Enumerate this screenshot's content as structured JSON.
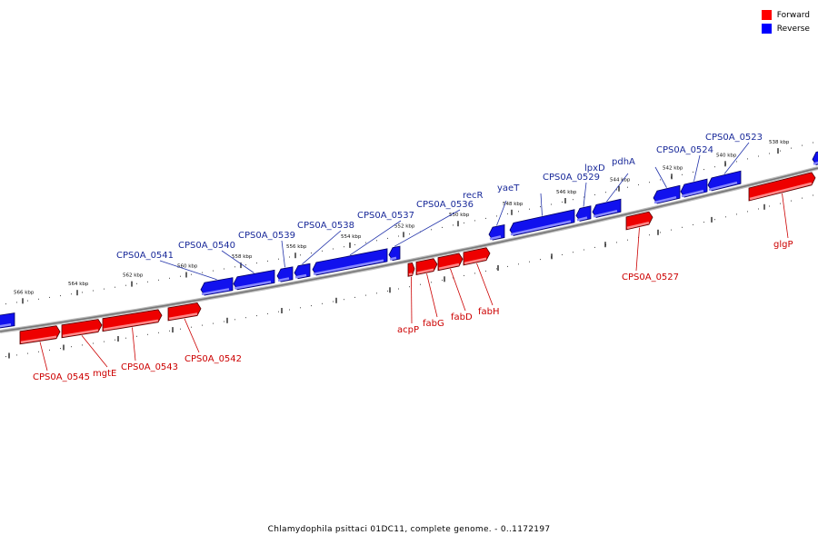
{
  "title": "Chlamydophila psittaci 01DC11, complete genome. - 0..1172197",
  "legend": {
    "forward": {
      "label": "Forward",
      "color": "#ff0000"
    },
    "reverse": {
      "label": "Reverse",
      "color": "#0000ff"
    }
  },
  "tick_labels": [
    "566 kbp",
    "564 kbp",
    "562 kbp",
    "560 kbp",
    "558 kbp",
    "556 kbp",
    "554 kbp",
    "552 kbp",
    "550 kbp",
    "548 kbp",
    "546 kbp",
    "544 kbp",
    "542 kbp",
    "540 kbp",
    "538 kbp"
  ],
  "genes_reverse": [
    {
      "label": "CPS0A_0541"
    },
    {
      "label": "CPS0A_0540"
    },
    {
      "label": "CPS0A_0539"
    },
    {
      "label": "CPS0A_0538"
    },
    {
      "label": "CPS0A_0537"
    },
    {
      "label": "CPS0A_0536"
    },
    {
      "label": "recR"
    },
    {
      "label": "yaeT"
    },
    {
      "label": "CPS0A_0529"
    },
    {
      "label": "lpxD"
    },
    {
      "label": "pdhA"
    },
    {
      "label": "CPS0A_0524"
    },
    {
      "label": "CPS0A_0523"
    }
  ],
  "genes_forward": [
    {
      "label": "CPS0A_0545"
    },
    {
      "label": "mgtE"
    },
    {
      "label": "CPS0A_0543"
    },
    {
      "label": "CPS0A_0542"
    },
    {
      "label": "acpP"
    },
    {
      "label": "fabG"
    },
    {
      "label": "fabD"
    },
    {
      "label": "fabH"
    },
    {
      "label": "CPS0A_0527"
    },
    {
      "label": "glgP"
    }
  ]
}
